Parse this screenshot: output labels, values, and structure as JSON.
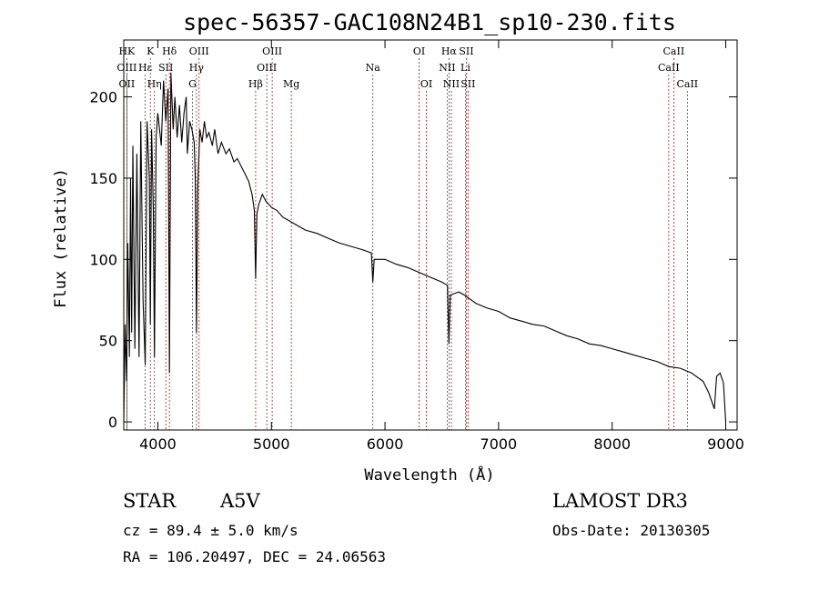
{
  "chart_data": {
    "type": "line",
    "title": "spec-56357-GAC108N24B1_sp10-230.fits",
    "xlabel": "Wavelength (Å)",
    "ylabel": "Flux (relative)",
    "xlim": [
      3700,
      9100
    ],
    "ylim": [
      -5,
      235
    ],
    "xticks": [
      4000,
      5000,
      6000,
      7000,
      8000,
      9000
    ],
    "yticks": [
      0,
      50,
      100,
      150,
      200
    ],
    "line_color": "#000000",
    "marker_color": "#b22222",
    "spectrum": [
      [
        3700,
        0
      ],
      [
        3712,
        60
      ],
      [
        3725,
        25
      ],
      [
        3735,
        110
      ],
      [
        3750,
        40
      ],
      [
        3760,
        150
      ],
      [
        3770,
        55
      ],
      [
        3780,
        170
      ],
      [
        3798,
        45
      ],
      [
        3815,
        165
      ],
      [
        3835,
        40
      ],
      [
        3850,
        185
      ],
      [
        3870,
        75
      ],
      [
        3889,
        35
      ],
      [
        3905,
        185
      ],
      [
        3925,
        150
      ],
      [
        3934,
        60
      ],
      [
        3945,
        180
      ],
      [
        3960,
        130
      ],
      [
        3970,
        40
      ],
      [
        3985,
        175
      ],
      [
        4000,
        190
      ],
      [
        4030,
        170
      ],
      [
        4050,
        210
      ],
      [
        4070,
        185
      ],
      [
        4090,
        205
      ],
      [
        4102,
        30
      ],
      [
        4115,
        215
      ],
      [
        4135,
        180
      ],
      [
        4150,
        200
      ],
      [
        4170,
        175
      ],
      [
        4190,
        195
      ],
      [
        4210,
        172
      ],
      [
        4230,
        190
      ],
      [
        4250,
        200
      ],
      [
        4260,
        165
      ],
      [
        4280,
        185
      ],
      [
        4300,
        180
      ],
      [
        4320,
        172
      ],
      [
        4330,
        150
      ],
      [
        4340,
        55
      ],
      [
        4352,
        145
      ],
      [
        4370,
        180
      ],
      [
        4390,
        172
      ],
      [
        4410,
        185
      ],
      [
        4430,
        175
      ],
      [
        4450,
        178
      ],
      [
        4480,
        170
      ],
      [
        4500,
        180
      ],
      [
        4530,
        165
      ],
      [
        4560,
        172
      ],
      [
        4600,
        165
      ],
      [
        4630,
        168
      ],
      [
        4670,
        160
      ],
      [
        4700,
        162
      ],
      [
        4750,
        155
      ],
      [
        4800,
        148
      ],
      [
        4830,
        140
      ],
      [
        4850,
        130
      ],
      [
        4861,
        88
      ],
      [
        4872,
        128
      ],
      [
        4890,
        134
      ],
      [
        4920,
        140
      ],
      [
        4950,
        136
      ],
      [
        5000,
        132
      ],
      [
        5050,
        130
      ],
      [
        5100,
        126
      ],
      [
        5150,
        124
      ],
      [
        5200,
        122
      ],
      [
        5250,
        120
      ],
      [
        5300,
        118
      ],
      [
        5400,
        116
      ],
      [
        5500,
        113
      ],
      [
        5600,
        110
      ],
      [
        5700,
        108
      ],
      [
        5800,
        106
      ],
      [
        5880,
        104
      ],
      [
        5893,
        86
      ],
      [
        5905,
        100
      ],
      [
        6000,
        100
      ],
      [
        6100,
        97
      ],
      [
        6200,
        95
      ],
      [
        6300,
        92
      ],
      [
        6400,
        89
      ],
      [
        6500,
        86
      ],
      [
        6550,
        84
      ],
      [
        6563,
        48
      ],
      [
        6575,
        78
      ],
      [
        6650,
        80
      ],
      [
        6700,
        78
      ],
      [
        6800,
        73
      ],
      [
        6900,
        70
      ],
      [
        7000,
        68
      ],
      [
        7100,
        64
      ],
      [
        7200,
        62
      ],
      [
        7300,
        60
      ],
      [
        7400,
        59
      ],
      [
        7500,
        56
      ],
      [
        7600,
        53
      ],
      [
        7700,
        51
      ],
      [
        7800,
        48
      ],
      [
        7900,
        47
      ],
      [
        8000,
        45
      ],
      [
        8100,
        43
      ],
      [
        8200,
        41
      ],
      [
        8300,
        39
      ],
      [
        8400,
        37
      ],
      [
        8500,
        34
      ],
      [
        8600,
        33
      ],
      [
        8700,
        30
      ],
      [
        8800,
        25
      ],
      [
        8850,
        18
      ],
      [
        8900,
        8
      ],
      [
        8920,
        28
      ],
      [
        8950,
        30
      ],
      [
        8980,
        24
      ],
      [
        9000,
        0
      ]
    ],
    "line_markers": [
      {
        "label": "HK",
        "wavelength": 3727,
        "row": 1
      },
      {
        "label": "OIII",
        "wavelength": 3727,
        "row": 2
      },
      {
        "label": "OII",
        "wavelength": 3727,
        "row": 3
      },
      {
        "label": "Hε",
        "wavelength": 3889,
        "row": 2
      },
      {
        "label": "K",
        "wavelength": 3934,
        "row": 1
      },
      {
        "label": "Hη",
        "wavelength": 3970,
        "row": 3
      },
      {
        "label": "SII",
        "wavelength": 4070,
        "row": 2
      },
      {
        "label": "Hδ",
        "wavelength": 4102,
        "row": 1
      },
      {
        "label": "OIII",
        "wavelength": 4363,
        "row": 1
      },
      {
        "label": "Hγ",
        "wavelength": 4340,
        "row": 2
      },
      {
        "label": "G",
        "wavelength": 4305,
        "row": 3
      },
      {
        "label": "Hβ",
        "wavelength": 4861,
        "row": 3
      },
      {
        "label": "OIII",
        "wavelength": 5007,
        "row": 1
      },
      {
        "label": "OIII",
        "wavelength": 4959,
        "row": 2
      },
      {
        "label": "Mg",
        "wavelength": 5175,
        "row": 3
      },
      {
        "label": "Na",
        "wavelength": 5893,
        "row": 2
      },
      {
        "label": "OI",
        "wavelength": 6300,
        "row": 1
      },
      {
        "label": "OI",
        "wavelength": 6364,
        "row": 3
      },
      {
        "label": "Hα",
        "wavelength": 6563,
        "row": 1
      },
      {
        "label": "SII",
        "wavelength": 6716,
        "row": 1
      },
      {
        "label": "NII",
        "wavelength": 6548,
        "row": 2
      },
      {
        "label": "Li",
        "wavelength": 6708,
        "row": 2
      },
      {
        "label": "NII",
        "wavelength": 6584,
        "row": 3
      },
      {
        "label": "SII",
        "wavelength": 6731,
        "row": 3
      },
      {
        "label": "CaII",
        "wavelength": 8542,
        "row": 1
      },
      {
        "label": "CaII",
        "wavelength": 8498,
        "row": 2
      },
      {
        "label": "CaII",
        "wavelength": 8662,
        "row": 3
      }
    ]
  },
  "info": {
    "object_class": "STAR",
    "subclass": "A5V",
    "survey": "LAMOST DR3",
    "cz": "cz = 89.4 ± 5.0 km/s",
    "obs_date": "Obs-Date: 20130305",
    "radec": "RA = 106.20497, DEC =  24.06563"
  }
}
